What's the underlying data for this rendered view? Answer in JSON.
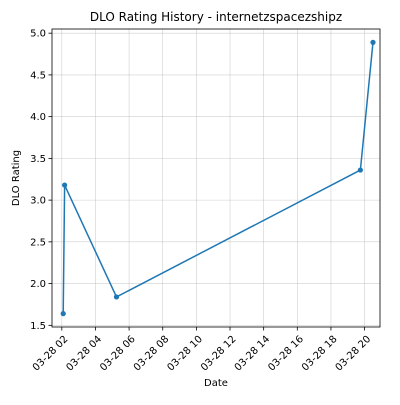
{
  "chart_data": {
    "type": "line",
    "title": "DLO Rating History - internetzspacezshipz",
    "xlabel": "Date",
    "ylabel": "DLO Rating",
    "x_axis_kind": "datetime",
    "xlim": [
      "2024-03-28T01:25",
      "2024-03-28T20:55"
    ],
    "ylim": [
      1.48,
      5.05
    ],
    "x_ticks": [
      {
        "value": "2024-03-28T02:00",
        "label": "03-28 02"
      },
      {
        "value": "2024-03-28T04:00",
        "label": "03-28 04"
      },
      {
        "value": "2024-03-28T06:00",
        "label": "03-28 06"
      },
      {
        "value": "2024-03-28T08:00",
        "label": "03-28 08"
      },
      {
        "value": "2024-03-28T10:00",
        "label": "03-28 10"
      },
      {
        "value": "2024-03-28T12:00",
        "label": "03-28 12"
      },
      {
        "value": "2024-03-28T14:00",
        "label": "03-28 14"
      },
      {
        "value": "2024-03-28T16:00",
        "label": "03-28 16"
      },
      {
        "value": "2024-03-28T18:00",
        "label": "03-28 18"
      },
      {
        "value": "2024-03-28T20:00",
        "label": "03-28 20"
      }
    ],
    "y_ticks": [
      {
        "value": 1.5,
        "label": "1.5"
      },
      {
        "value": 2.0,
        "label": "2.0"
      },
      {
        "value": 2.5,
        "label": "2.5"
      },
      {
        "value": 3.0,
        "label": "3.0"
      },
      {
        "value": 3.5,
        "label": "3.5"
      },
      {
        "value": 4.0,
        "label": "4.0"
      },
      {
        "value": 4.5,
        "label": "4.5"
      },
      {
        "value": 5.0,
        "label": "5.0"
      }
    ],
    "grid": true,
    "legend": false,
    "series": [
      {
        "color": "#1f77b4",
        "marker": "circle",
        "points": [
          {
            "x": "2024-03-28T02:05",
            "y": 1.64
          },
          {
            "x": "2024-03-28T02:10",
            "y": 3.18
          },
          {
            "x": "2024-03-28T05:15",
            "y": 1.84
          },
          {
            "x": "2024-03-28T19:45",
            "y": 3.36
          },
          {
            "x": "2024-03-28T20:30",
            "y": 4.89
          }
        ]
      }
    ]
  }
}
